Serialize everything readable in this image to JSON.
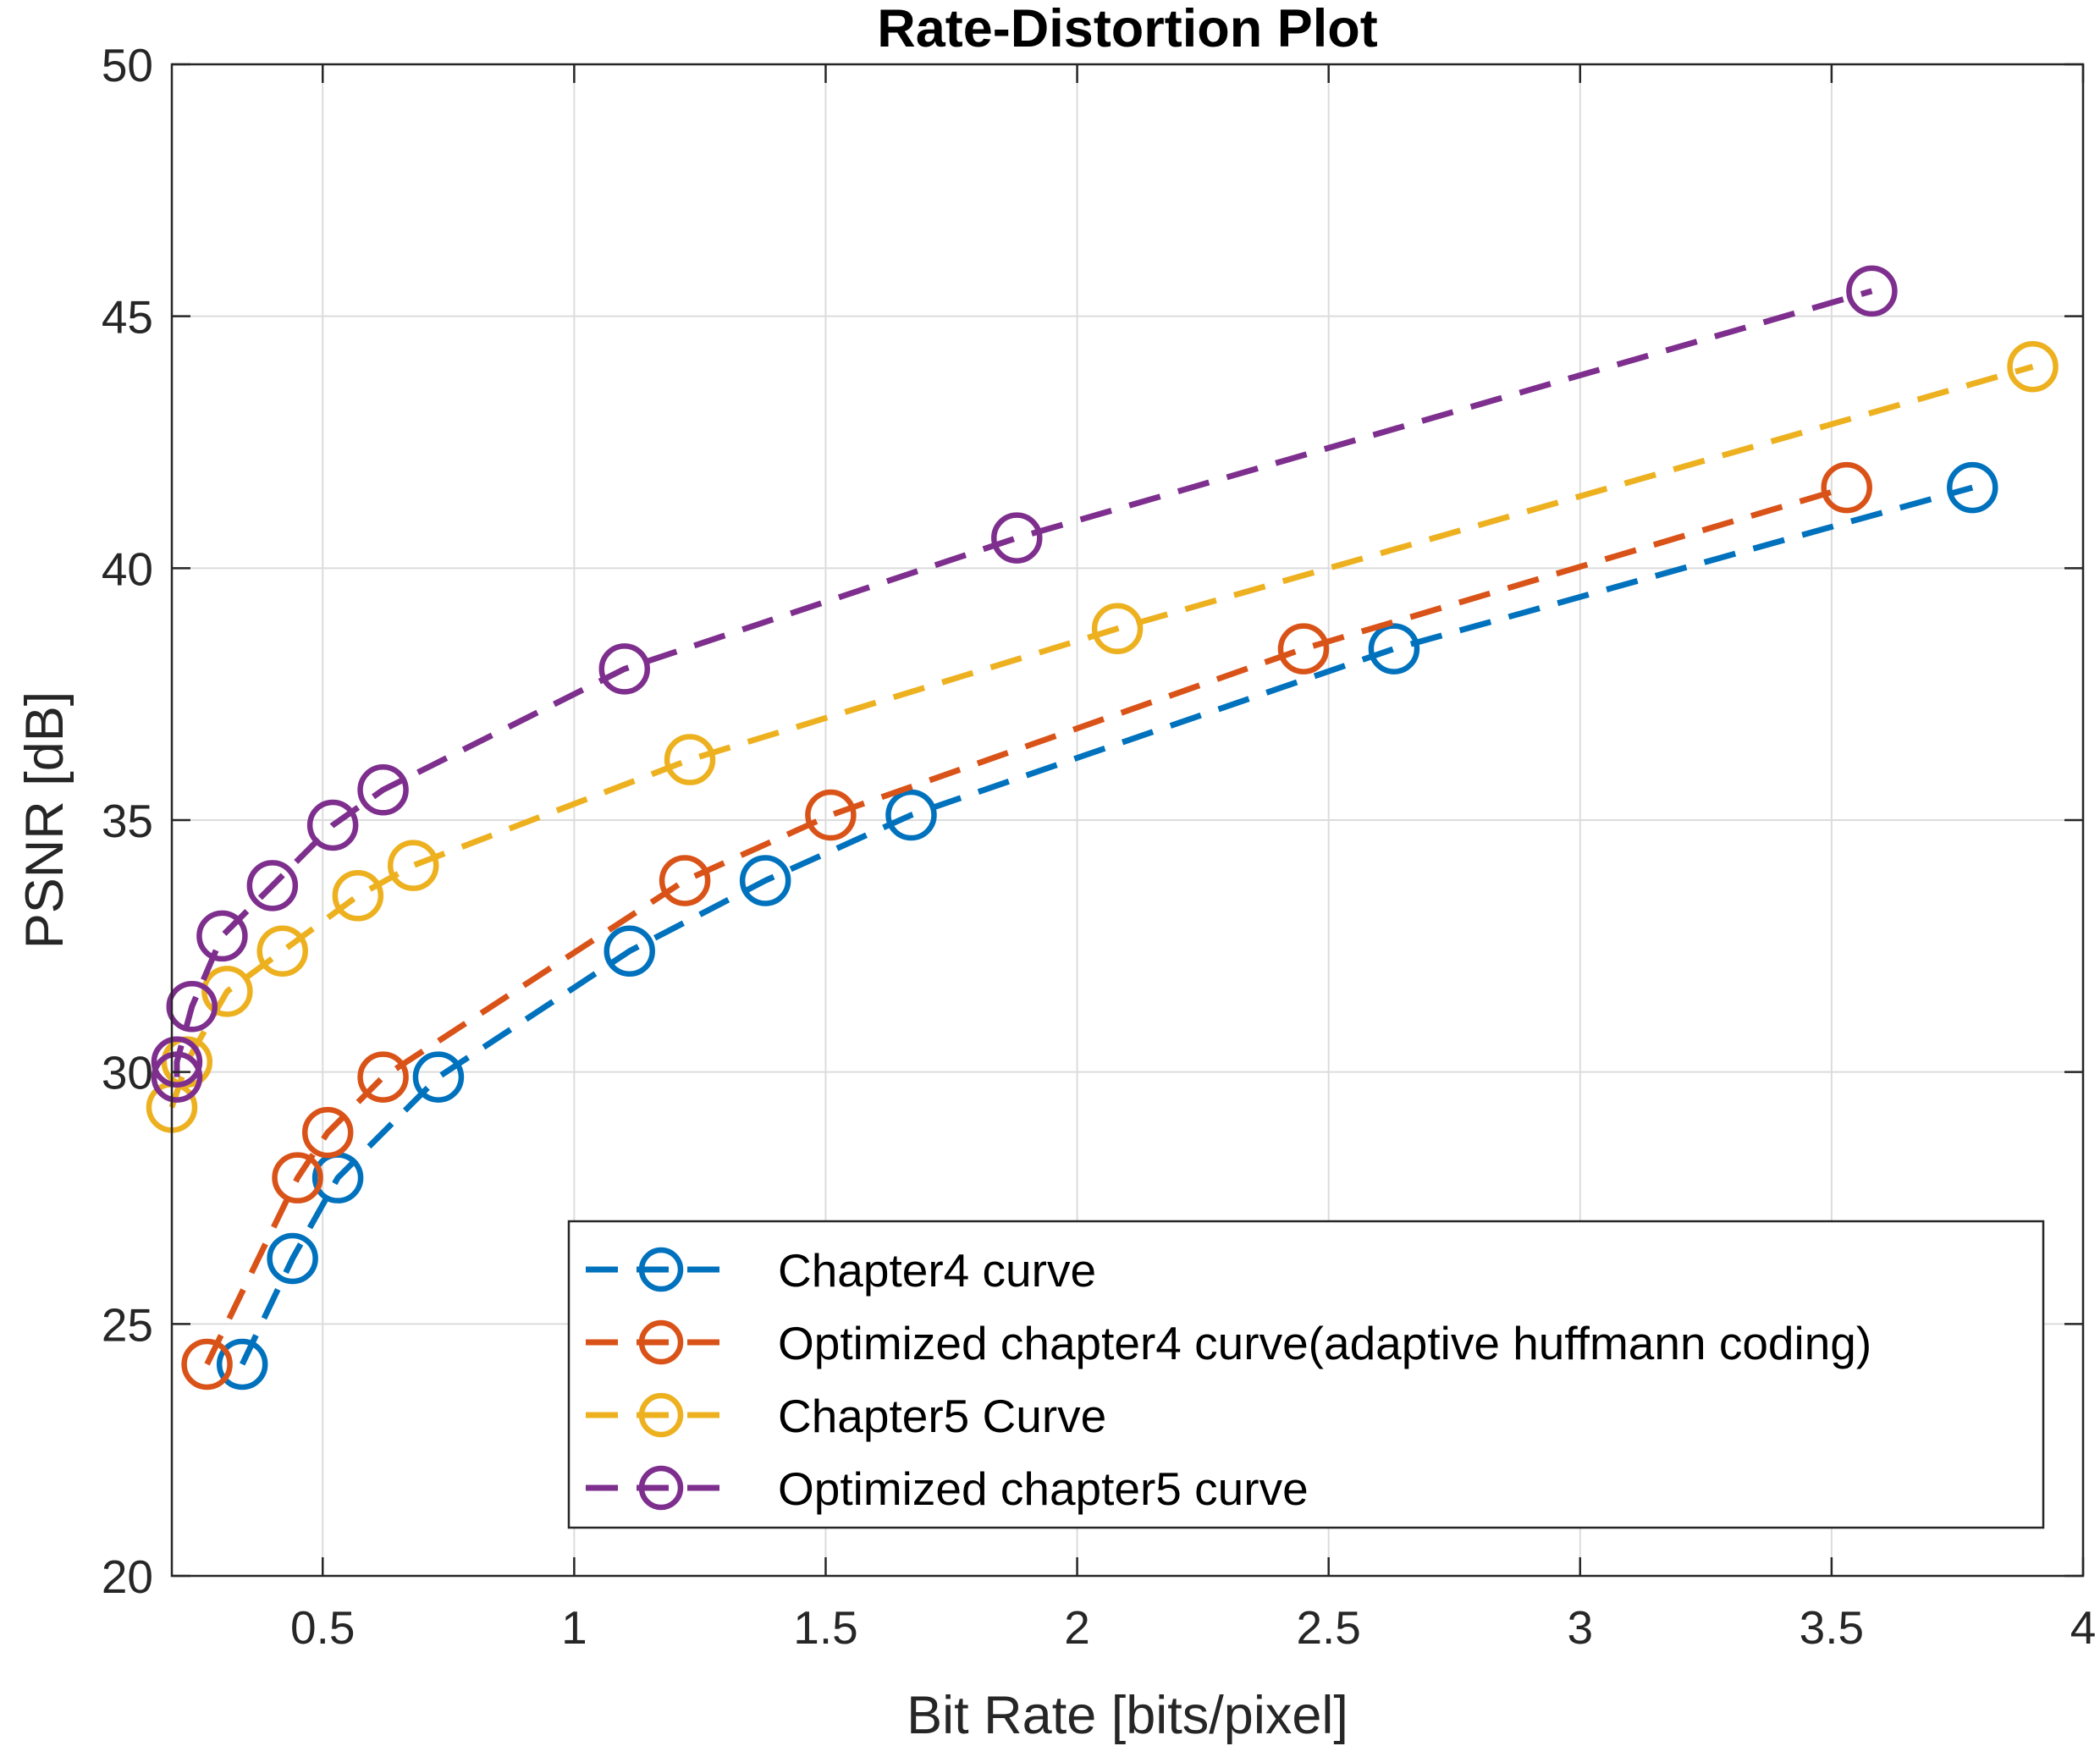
{
  "chart_data": {
    "type": "line",
    "title": "Rate-Distortion Plot",
    "xlabel": "Bit Rate [bits/pixel]",
    "ylabel": "PSNR [dB]",
    "xlim": [
      0.2,
      4
    ],
    "ylim": [
      20,
      50
    ],
    "xticks": [
      0.5,
      1,
      1.5,
      2,
      2.5,
      3,
      3.5,
      4
    ],
    "xtick_labels": [
      "0.5",
      "1",
      "1.5",
      "2",
      "2.5",
      "3",
      "3.5",
      "4"
    ],
    "yticks": [
      20,
      25,
      30,
      35,
      40,
      45,
      50
    ],
    "ytick_labels": [
      "20",
      "25",
      "30",
      "35",
      "40",
      "45",
      "50"
    ],
    "grid": true,
    "legend_position": "bottom-right",
    "line_style": "dashed",
    "marker": "circle",
    "series": [
      {
        "name": "Chapter4 curve",
        "color": "#0072BD",
        "x": [
          0.34,
          0.44,
          0.53,
          0.73,
          1.11,
          1.38,
          1.67,
          2.63,
          3.78
        ],
        "y": [
          24.2,
          26.3,
          27.9,
          29.9,
          32.4,
          33.8,
          35.1,
          38.4,
          41.6
        ]
      },
      {
        "name": "Optimized chapter4 curve(adaptive huffmann coding)",
        "color": "#D95319",
        "x": [
          0.27,
          0.45,
          0.51,
          0.62,
          1.22,
          1.51,
          2.45,
          3.53
        ],
        "y": [
          24.2,
          27.9,
          28.8,
          29.9,
          33.8,
          35.1,
          38.4,
          41.6
        ]
      },
      {
        "name": "Chapter5 Curve",
        "color": "#EDB120",
        "x": [
          0.2,
          0.23,
          0.31,
          0.42,
          0.57,
          0.68,
          1.23,
          2.08,
          3.9
        ],
        "y": [
          29.3,
          30.2,
          31.6,
          32.4,
          33.5,
          34.1,
          36.2,
          38.8,
          44.0
        ]
      },
      {
        "name": "Optimized chapter5 curve",
        "color": "#7E2F8E",
        "x": [
          0.21,
          0.21,
          0.24,
          0.3,
          0.4,
          0.52,
          0.62,
          1.1,
          1.88,
          3.58
        ],
        "y": [
          29.9,
          30.2,
          31.3,
          32.7,
          33.7,
          34.9,
          35.6,
          38.0,
          40.6,
          45.5
        ]
      }
    ]
  }
}
